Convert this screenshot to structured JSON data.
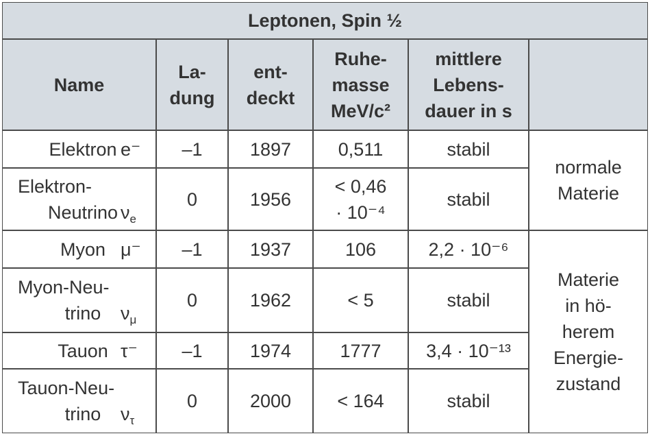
{
  "title": "Leptonen, Spin ½",
  "header": [
    [
      "Name"
    ],
    [
      "La-",
      "dung"
    ],
    [
      "ent-",
      "deckt"
    ],
    [
      "Ruhe-",
      "masse",
      "MeV/c²"
    ],
    [
      "mittlere",
      "Lebens-",
      "dauer in s"
    ]
  ],
  "rows": [
    {
      "name": [
        "Elektron"
      ],
      "symbol": "e⁻",
      "charge": "–1",
      "discovered": "1897",
      "mass": [
        "0,511"
      ],
      "lifetime": "stabil"
    },
    {
      "name": [
        "Elektron-",
        "Neutrino"
      ],
      "symbol": "ν",
      "symbol_sub": "e",
      "charge": "0",
      "discovered": "1956",
      "mass": [
        "< 0,46",
        "· 10⁻⁴"
      ],
      "lifetime": "stabil"
    },
    {
      "name": [
        "Myon"
      ],
      "symbol": "μ⁻",
      "charge": "–1",
      "discovered": "1937",
      "mass": [
        "106"
      ],
      "lifetime": "2,2 · 10⁻⁶"
    },
    {
      "name": [
        "Myon-Neu-",
        "trino"
      ],
      "symbol": "ν",
      "symbol_sub": "μ",
      "charge": "0",
      "discovered": "1962",
      "mass": [
        "< 5"
      ],
      "lifetime": "stabil"
    },
    {
      "name": [
        "Tauon"
      ],
      "symbol": "τ⁻",
      "charge": "–1",
      "discovered": "1974",
      "mass": [
        "1777"
      ],
      "lifetime": "3,4 · 10⁻¹³"
    },
    {
      "name": [
        "Tauon-Neu-",
        "trino"
      ],
      "symbol": "ν",
      "symbol_sub": "τ",
      "charge": "0",
      "discovered": "2000",
      "mass": [
        "< 164"
      ],
      "lifetime": "stabil"
    }
  ],
  "groups": [
    [
      "normale",
      "Materie"
    ],
    [
      "Materie",
      "in hö-",
      "herem",
      "Energie-",
      "zustand"
    ]
  ]
}
